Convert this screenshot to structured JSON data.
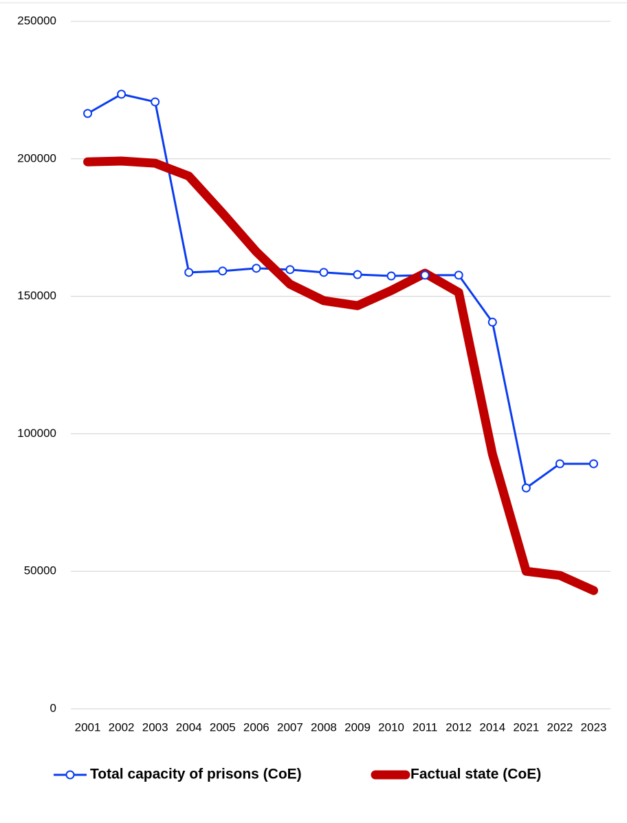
{
  "chart_data": {
    "type": "line",
    "categories": [
      "2001",
      "2002",
      "2003",
      "2004",
      "2005",
      "2006",
      "2007",
      "2008",
      "2009",
      "2010",
      "2011",
      "2012",
      "2014",
      "2021",
      "2022",
      "2023"
    ],
    "series": [
      {
        "name": "Total capacity of prisons (CoE)",
        "color": "#0a3cf0",
        "values": [
          216500,
          223500,
          220700,
          158700,
          159200,
          160200,
          159700,
          158700,
          157900,
          157400,
          157700,
          157700,
          140600,
          80300,
          89100,
          89100
        ]
      },
      {
        "name": "Factual state (CoE)",
        "color": "#c00000",
        "values": [
          198900,
          199200,
          198400,
          193700,
          180200,
          166200,
          154400,
          148400,
          146600,
          152100,
          158400,
          151400,
          92600,
          50000,
          48500,
          43000
        ]
      }
    ],
    "ylim": [
      0,
      250000
    ],
    "yticks": [
      0,
      50000,
      100000,
      150000,
      200000,
      250000
    ],
    "grid": true,
    "legend": "bottom"
  }
}
